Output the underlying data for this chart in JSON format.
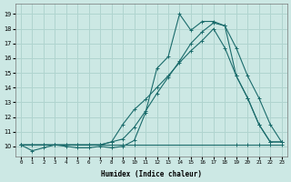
{
  "xlabel": "Humidex (Indice chaleur)",
  "xlim": [
    -0.5,
    23.5
  ],
  "ylim": [
    9.3,
    19.7
  ],
  "yticks": [
    10,
    11,
    12,
    13,
    14,
    15,
    16,
    17,
    18,
    19
  ],
  "xticks": [
    0,
    1,
    2,
    3,
    4,
    5,
    6,
    7,
    8,
    9,
    10,
    11,
    12,
    13,
    14,
    15,
    16,
    17,
    18,
    19,
    20,
    21,
    22,
    23
  ],
  "background_color": "#cce8e4",
  "grid_color": "#b0d4cf",
  "line_color": "#1a6b6b",
  "line1_x": [
    0,
    1,
    2,
    3,
    4,
    5,
    6,
    7,
    8,
    9,
    10,
    11,
    12,
    13,
    14,
    15,
    16,
    17,
    18,
    19,
    20,
    21,
    22,
    23
  ],
  "line1_y": [
    10.1,
    9.7,
    9.9,
    10.1,
    10.0,
    9.9,
    9.9,
    10.0,
    9.9,
    10.0,
    10.4,
    12.3,
    15.3,
    16.1,
    19.0,
    17.9,
    18.5,
    18.5,
    18.2,
    16.7,
    14.8,
    13.3,
    11.5,
    10.3
  ],
  "line2_x": [
    0,
    1,
    2,
    3,
    4,
    5,
    6,
    7,
    8,
    9,
    10,
    19,
    20,
    21,
    22,
    23
  ],
  "line2_y": [
    10.1,
    10.1,
    10.1,
    10.1,
    10.1,
    10.1,
    10.1,
    10.1,
    10.1,
    10.1,
    10.1,
    10.1,
    10.1,
    10.1,
    10.1,
    10.1
  ],
  "line3_x": [
    0,
    1,
    2,
    3,
    4,
    5,
    6,
    7,
    8,
    9,
    10,
    11,
    12,
    13,
    14,
    15,
    16,
    17,
    18,
    19,
    20,
    21,
    22,
    23
  ],
  "line3_y": [
    10.1,
    10.1,
    10.1,
    10.1,
    10.1,
    10.1,
    10.1,
    10.1,
    10.3,
    11.5,
    12.5,
    13.2,
    14.0,
    14.8,
    15.7,
    16.5,
    17.2,
    18.0,
    16.7,
    14.8,
    13.3,
    11.5,
    10.3,
    10.3
  ],
  "line4_x": [
    0,
    7,
    8,
    9,
    10,
    11,
    12,
    13,
    14,
    15,
    16,
    17,
    18,
    19,
    20,
    21,
    22,
    23
  ],
  "line4_y": [
    10.1,
    10.1,
    10.3,
    10.5,
    11.3,
    12.4,
    13.6,
    14.7,
    15.8,
    17.0,
    17.8,
    18.4,
    18.2,
    14.8,
    13.3,
    11.5,
    10.3,
    10.3
  ]
}
